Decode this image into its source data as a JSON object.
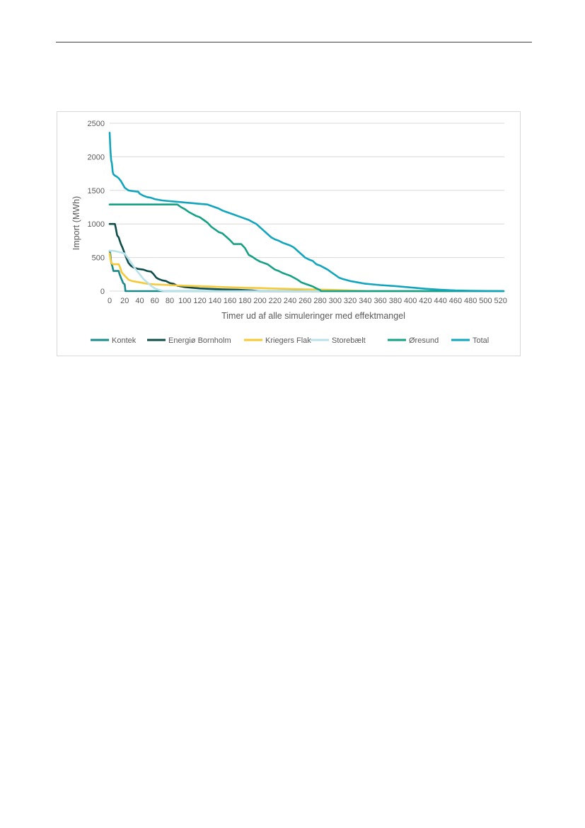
{
  "page": {},
  "chart_data": {
    "type": "line",
    "title": "",
    "xlabel": "Timer ud af alle simuleringer med effektmangel",
    "ylabel": "Import (MWh)",
    "xlim": [
      0,
      525
    ],
    "ylim": [
      0,
      2500
    ],
    "x_ticks": [
      0,
      20,
      40,
      60,
      80,
      100,
      120,
      140,
      160,
      180,
      200,
      220,
      240,
      260,
      280,
      300,
      320,
      340,
      360,
      380,
      400,
      420,
      440,
      460,
      480,
      500,
      520
    ],
    "y_ticks": [
      0,
      500,
      1000,
      1500,
      2000,
      2500
    ],
    "grid": "horizontal",
    "legend_position": "bottom",
    "series": [
      {
        "name": "Kontek",
        "color": "#1b8a8a",
        "x": [
          0,
          1,
          2,
          4,
          5,
          12,
          13,
          15,
          18,
          20,
          21,
          23,
          100,
          524
        ],
        "y": [
          600,
          540,
          430,
          350,
          300,
          300,
          260,
          200,
          120,
          100,
          0,
          0,
          0,
          0
        ]
      },
      {
        "name": "Energiø Bornholm",
        "color": "#0f4c4c",
        "x": [
          0,
          7,
          8,
          10,
          12,
          15,
          17,
          20,
          22,
          25,
          28,
          32,
          38,
          45,
          50,
          55,
          58,
          62,
          65,
          70,
          75,
          80,
          85,
          90,
          95,
          100,
          110,
          120,
          130,
          150,
          170,
          190,
          200,
          524
        ],
        "y": [
          1000,
          1000,
          950,
          830,
          800,
          700,
          650,
          560,
          500,
          420,
          380,
          350,
          330,
          320,
          300,
          290,
          260,
          200,
          180,
          160,
          150,
          120,
          110,
          80,
          70,
          60,
          50,
          40,
          35,
          25,
          20,
          10,
          0,
          0
        ]
      },
      {
        "name": "Kriegers Flak",
        "color": "#f5c938",
        "x": [
          0,
          1,
          2,
          3,
          5,
          12,
          14,
          16,
          20,
          25,
          30,
          40,
          50,
          60,
          70,
          80,
          100,
          130,
          150,
          180,
          200,
          230,
          260,
          290,
          320,
          350,
          524
        ],
        "y": [
          560,
          480,
          430,
          410,
          400,
          400,
          350,
          280,
          230,
          170,
          150,
          130,
          110,
          100,
          95,
          90,
          80,
          70,
          60,
          50,
          45,
          35,
          25,
          20,
          10,
          0,
          0
        ]
      },
      {
        "name": "Storebælt",
        "color": "#b8e1ea",
        "x": [
          0,
          5,
          10,
          20,
          25,
          30,
          35,
          40,
          45,
          50,
          55,
          60,
          65,
          70,
          75,
          524
        ],
        "y": [
          600,
          600,
          590,
          560,
          480,
          400,
          320,
          250,
          180,
          130,
          80,
          40,
          20,
          5,
          0,
          0
        ]
      },
      {
        "name": "Øresund",
        "color": "#16a085",
        "x": [
          0,
          5,
          80,
          90,
          95,
          100,
          105,
          110,
          115,
          120,
          125,
          130,
          135,
          140,
          145,
          150,
          155,
          160,
          165,
          170,
          175,
          180,
          185,
          190,
          195,
          200,
          205,
          210,
          215,
          220,
          225,
          230,
          235,
          240,
          245,
          250,
          255,
          260,
          265,
          270,
          275,
          280,
          281,
          285,
          290,
          295,
          300,
          524
        ],
        "y": [
          1290,
          1290,
          1290,
          1290,
          1250,
          1220,
          1180,
          1150,
          1120,
          1100,
          1060,
          1020,
          960,
          920,
          880,
          860,
          810,
          760,
          700,
          700,
          700,
          640,
          540,
          510,
          470,
          440,
          420,
          400,
          360,
          320,
          300,
          270,
          250,
          230,
          200,
          170,
          130,
          110,
          90,
          70,
          40,
          15,
          0,
          0,
          0,
          0,
          0,
          0
        ]
      },
      {
        "name": "Total",
        "color": "#12a5bd",
        "x": [
          0,
          1,
          2,
          3,
          4,
          5,
          7,
          10,
          12,
          15,
          17,
          20,
          25,
          30,
          38,
          40,
          45,
          50,
          55,
          60,
          70,
          80,
          90,
          100,
          110,
          120,
          130,
          135,
          140,
          145,
          150,
          155,
          160,
          165,
          170,
          175,
          180,
          185,
          190,
          195,
          200,
          205,
          210,
          215,
          220,
          225,
          230,
          235,
          240,
          245,
          250,
          255,
          260,
          265,
          270,
          275,
          280,
          285,
          290,
          295,
          300,
          305,
          310,
          320,
          330,
          340,
          350,
          360,
          380,
          400,
          420,
          440,
          460,
          480,
          524
        ],
        "y": [
          2360,
          2100,
          1950,
          1900,
          1780,
          1740,
          1720,
          1700,
          1680,
          1640,
          1600,
          1540,
          1500,
          1490,
          1480,
          1450,
          1420,
          1400,
          1390,
          1370,
          1350,
          1340,
          1330,
          1320,
          1310,
          1300,
          1290,
          1270,
          1250,
          1230,
          1200,
          1180,
          1160,
          1140,
          1120,
          1100,
          1080,
          1060,
          1030,
          1000,
          950,
          900,
          850,
          800,
          770,
          750,
          720,
          700,
          680,
          650,
          600,
          550,
          500,
          470,
          450,
          400,
          380,
          350,
          320,
          280,
          240,
          200,
          180,
          150,
          130,
          110,
          100,
          90,
          75,
          55,
          35,
          20,
          10,
          5,
          0
        ]
      }
    ]
  }
}
